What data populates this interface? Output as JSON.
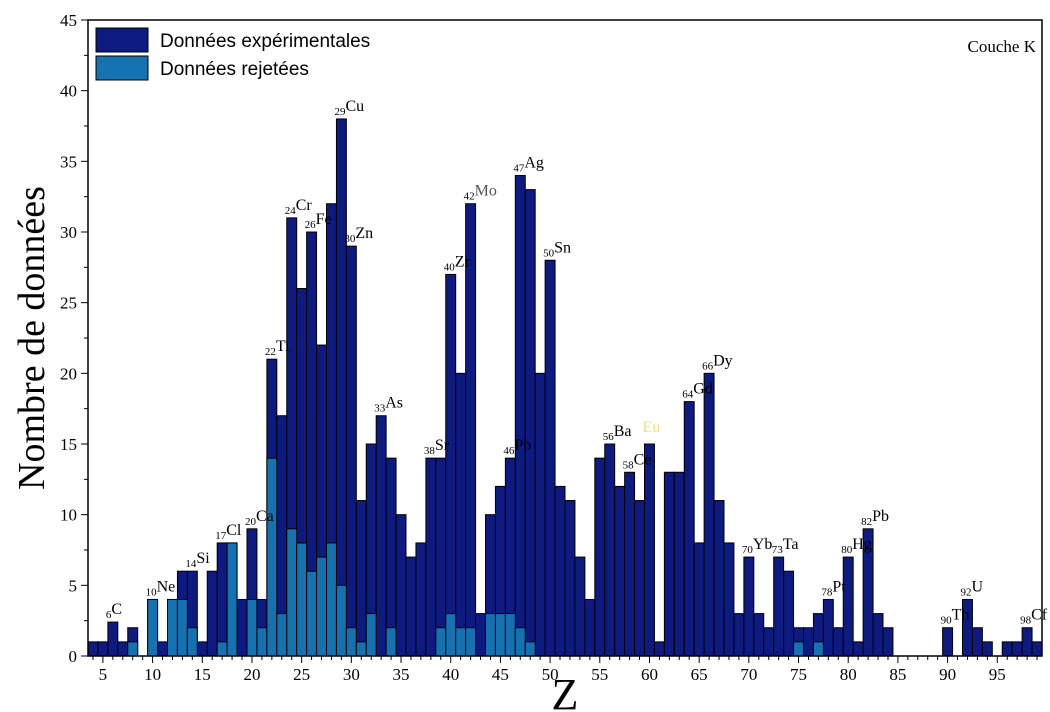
{
  "chart_data": {
    "type": "bar",
    "xlabel": "Z",
    "ylabel": "Nombre de données",
    "corner_label": "Couche K",
    "xlim": [
      3.5,
      99.5
    ],
    "ylim": [
      0,
      45
    ],
    "x_ticks": [
      5,
      10,
      15,
      20,
      25,
      30,
      35,
      40,
      45,
      50,
      55,
      60,
      65,
      70,
      75,
      80,
      85,
      90,
      95
    ],
    "y_ticks": [
      0,
      5,
      10,
      15,
      20,
      25,
      30,
      35,
      40,
      45
    ],
    "grid": false,
    "legend_position": "top-left",
    "colors": {
      "experimental": "#0d1a80",
      "rejected": "#1472b0",
      "edge": "#000000"
    },
    "series": [
      {
        "name": "Données expérimentales",
        "color": "#0d1a80",
        "points": [
          [
            4,
            1
          ],
          [
            5,
            1
          ],
          [
            6,
            2.4
          ],
          [
            7,
            1
          ],
          [
            8,
            2
          ],
          [
            10,
            4
          ],
          [
            11,
            1
          ],
          [
            12,
            4
          ],
          [
            13,
            6
          ],
          [
            14,
            6
          ],
          [
            15,
            1
          ],
          [
            16,
            6
          ],
          [
            17,
            8
          ],
          [
            18,
            8
          ],
          [
            19,
            4
          ],
          [
            20,
            9
          ],
          [
            21,
            4
          ],
          [
            22,
            21
          ],
          [
            23,
            17
          ],
          [
            24,
            31
          ],
          [
            25,
            26
          ],
          [
            26,
            30
          ],
          [
            27,
            22
          ],
          [
            28,
            32
          ],
          [
            29,
            38
          ],
          [
            30,
            29
          ],
          [
            31,
            11
          ],
          [
            32,
            15
          ],
          [
            33,
            17
          ],
          [
            34,
            14
          ],
          [
            35,
            10
          ],
          [
            36,
            7
          ],
          [
            37,
            8
          ],
          [
            38,
            14
          ],
          [
            39,
            14
          ],
          [
            40,
            27
          ],
          [
            41,
            20
          ],
          [
            42,
            32
          ],
          [
            43,
            3
          ],
          [
            44,
            10
          ],
          [
            45,
            12
          ],
          [
            46,
            14
          ],
          [
            47,
            34
          ],
          [
            48,
            33
          ],
          [
            49,
            20
          ],
          [
            50,
            28
          ],
          [
            51,
            12
          ],
          [
            52,
            11
          ],
          [
            53,
            7
          ],
          [
            54,
            4
          ],
          [
            55,
            14
          ],
          [
            56,
            15
          ],
          [
            57,
            12
          ],
          [
            58,
            13
          ],
          [
            59,
            11
          ],
          [
            60,
            15
          ],
          [
            61,
            1
          ],
          [
            62,
            13
          ],
          [
            63,
            13
          ],
          [
            64,
            18
          ],
          [
            65,
            8
          ],
          [
            66,
            20
          ],
          [
            67,
            11
          ],
          [
            68,
            8
          ],
          [
            69,
            3
          ],
          [
            70,
            7
          ],
          [
            71,
            3
          ],
          [
            72,
            2
          ],
          [
            73,
            7
          ],
          [
            74,
            6
          ],
          [
            75,
            2
          ],
          [
            76,
            2
          ],
          [
            77,
            3
          ],
          [
            78,
            4
          ],
          [
            79,
            2
          ],
          [
            80,
            7
          ],
          [
            81,
            1
          ],
          [
            82,
            9
          ],
          [
            83,
            3
          ],
          [
            84,
            2
          ],
          [
            90,
            2
          ],
          [
            92,
            4
          ],
          [
            93,
            2
          ],
          [
            94,
            1
          ],
          [
            96,
            1
          ],
          [
            97,
            1
          ],
          [
            98,
            2
          ],
          [
            99,
            1
          ]
        ]
      },
      {
        "name": "Données rejetées",
        "color": "#1472b0",
        "points": [
          [
            8,
            1
          ],
          [
            10,
            4
          ],
          [
            12,
            4
          ],
          [
            13,
            4
          ],
          [
            14,
            2
          ],
          [
            17,
            1
          ],
          [
            18,
            8
          ],
          [
            20,
            4
          ],
          [
            21,
            2
          ],
          [
            22,
            14
          ],
          [
            23,
            3
          ],
          [
            24,
            9
          ],
          [
            25,
            8
          ],
          [
            26,
            6
          ],
          [
            27,
            7
          ],
          [
            28,
            8
          ],
          [
            29,
            5
          ],
          [
            30,
            2
          ],
          [
            31,
            1
          ],
          [
            32,
            3
          ],
          [
            34,
            2
          ],
          [
            39,
            2
          ],
          [
            40,
            3
          ],
          [
            41,
            2
          ],
          [
            42,
            2
          ],
          [
            44,
            3
          ],
          [
            45,
            3
          ],
          [
            46,
            3
          ],
          [
            47,
            2
          ],
          [
            48,
            1
          ],
          [
            75,
            1
          ],
          [
            77,
            1
          ]
        ]
      }
    ],
    "annotations": [
      {
        "z": "6",
        "symbol": "C",
        "x": 6,
        "y": 2.4,
        "color": "#000000"
      },
      {
        "z": "10",
        "symbol": "Ne",
        "x": 10,
        "y": 4,
        "color": "#000000"
      },
      {
        "z": "14",
        "symbol": "Si",
        "x": 14,
        "y": 6,
        "color": "#000000"
      },
      {
        "z": "17",
        "symbol": "Cl",
        "x": 17,
        "y": 8,
        "color": "#000000"
      },
      {
        "z": "20",
        "symbol": "Ca",
        "x": 20,
        "y": 9,
        "color": "#000000"
      },
      {
        "z": "22",
        "symbol": "Ti",
        "x": 22,
        "y": 21,
        "color": "#000000"
      },
      {
        "z": "24",
        "symbol": "Cr",
        "x": 24,
        "y": 31,
        "color": "#000000"
      },
      {
        "z": "26",
        "symbol": "Fe",
        "x": 26,
        "y": 30,
        "color": "#000000"
      },
      {
        "z": "29",
        "symbol": "Cu",
        "x": 29,
        "y": 38,
        "color": "#000000"
      },
      {
        "z": "30",
        "symbol": "Zn",
        "x": 30,
        "y": 29,
        "color": "#000000"
      },
      {
        "z": "33",
        "symbol": "As",
        "x": 33,
        "y": 17,
        "color": "#000000"
      },
      {
        "z": "38",
        "symbol": "Sr",
        "x": 38,
        "y": 14,
        "color": "#000000"
      },
      {
        "z": "40",
        "symbol": "Zr",
        "x": 40,
        "y": 27,
        "color": "#000000"
      },
      {
        "z": "42",
        "symbol": "Mo",
        "x": 42,
        "y": 32,
        "color": "#555555"
      },
      {
        "z": "46",
        "symbol": "Pb",
        "x": 46,
        "y": 14,
        "color": "#000000"
      },
      {
        "z": "47",
        "symbol": "Ag",
        "x": 47,
        "y": 34,
        "color": "#000000"
      },
      {
        "z": "50",
        "symbol": "Sn",
        "x": 50,
        "y": 28,
        "color": "#000000"
      },
      {
        "z": "56",
        "symbol": "Ba",
        "x": 56,
        "y": 15,
        "color": "#000000"
      },
      {
        "z": "58",
        "symbol": "Ce",
        "x": 58,
        "y": 13,
        "color": "#000000"
      },
      {
        "z": "",
        "symbol": "Eu",
        "x": 60,
        "y": 15,
        "color": "#f3e27a"
      },
      {
        "z": "64",
        "symbol": "Gd",
        "x": 64,
        "y": 18,
        "color": "#000000"
      },
      {
        "z": "66",
        "symbol": "Dy",
        "x": 66,
        "y": 20,
        "color": "#000000"
      },
      {
        "z": "70",
        "symbol": "Yb",
        "x": 70,
        "y": 7,
        "color": "#000000"
      },
      {
        "z": "73",
        "symbol": "Ta",
        "x": 73,
        "y": 7,
        "color": "#000000"
      },
      {
        "z": "78",
        "symbol": "Pt",
        "x": 78,
        "y": 4,
        "color": "#000000"
      },
      {
        "z": "80",
        "symbol": "Hg",
        "x": 80,
        "y": 7,
        "color": "#000000"
      },
      {
        "z": "82",
        "symbol": "Pb",
        "x": 82,
        "y": 9,
        "color": "#000000"
      },
      {
        "z": "90",
        "symbol": "Th",
        "x": 90,
        "y": 2,
        "color": "#000000"
      },
      {
        "z": "92",
        "symbol": "U",
        "x": 92,
        "y": 4,
        "color": "#000000"
      },
      {
        "z": "98",
        "symbol": "Cf",
        "x": 98,
        "y": 2,
        "color": "#000000"
      }
    ]
  }
}
